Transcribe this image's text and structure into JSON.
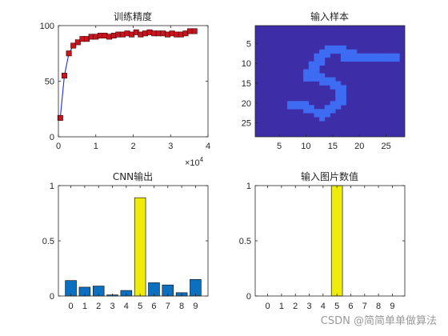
{
  "watermark": "CSDN @简简单单做算法",
  "colors": {
    "line": "#1f2fd6",
    "marker_fill": "#c8141e",
    "marker_edge": "#400000",
    "image_bg": "#3d2ea8",
    "image_fg": "#3d6cf2",
    "bar_blue": "#0b70c0",
    "bar_yellow": "#f0ec0a",
    "edge": "#1a1a1a"
  },
  "chart_data": [
    {
      "type": "line",
      "title": "训练精度",
      "xlabel": "",
      "ylabel": "",
      "xlim": [
        0,
        4
      ],
      "ylim": [
        0,
        100
      ],
      "x_multiplier_label": "×10",
      "x_multiplier_exponent": "4",
      "xticks": [
        {
          "v": 0,
          "label": "0"
        },
        {
          "v": 1,
          "label": "1"
        },
        {
          "v": 2,
          "label": "2"
        },
        {
          "v": 3,
          "label": "3"
        },
        {
          "v": 4,
          "label": "4"
        }
      ],
      "yticks": [
        {
          "v": 0,
          "label": "0"
        },
        {
          "v": 50,
          "label": "50"
        },
        {
          "v": 100,
          "label": "100"
        }
      ],
      "x": [
        0.05,
        0.16,
        0.28,
        0.4,
        0.52,
        0.64,
        0.76,
        0.88,
        1.0,
        1.12,
        1.24,
        1.36,
        1.48,
        1.6,
        1.72,
        1.84,
        1.96,
        2.08,
        2.2,
        2.32,
        2.44,
        2.56,
        2.68,
        2.8,
        2.92,
        3.04,
        3.16,
        3.28,
        3.4,
        3.52,
        3.64
      ],
      "y": [
        17,
        55,
        75,
        82,
        85,
        88,
        88,
        90,
        90,
        91,
        91,
        90,
        91,
        92,
        92,
        93,
        92,
        94,
        92,
        93,
        94,
        93,
        93,
        93,
        92,
        93,
        92,
        92,
        93,
        95,
        95
      ]
    },
    {
      "type": "heatmap",
      "title": "输入样本",
      "xlim": [
        0.5,
        28.5
      ],
      "ylim": [
        0.5,
        28.5
      ],
      "xticks": [
        {
          "v": 5,
          "label": "5"
        },
        {
          "v": 10,
          "label": "10"
        },
        {
          "v": 15,
          "label": "15"
        },
        {
          "v": 20,
          "label": "20"
        },
        {
          "v": 25,
          "label": "25"
        }
      ],
      "yticks": [
        {
          "v": 5,
          "label": "5"
        },
        {
          "v": 10,
          "label": "10"
        },
        {
          "v": 15,
          "label": "15"
        },
        {
          "v": 20,
          "label": "20"
        },
        {
          "v": 25,
          "label": "25"
        }
      ],
      "bright_pixels_row_col": [
        [
          6,
          14
        ],
        [
          6,
          15
        ],
        [
          6,
          16
        ],
        [
          6,
          17
        ],
        [
          7,
          13
        ],
        [
          7,
          14
        ],
        [
          7,
          15
        ],
        [
          7,
          16
        ],
        [
          7,
          17
        ],
        [
          7,
          18
        ],
        [
          7,
          19
        ],
        [
          8,
          12
        ],
        [
          8,
          13
        ],
        [
          8,
          14
        ],
        [
          8,
          17
        ],
        [
          8,
          18
        ],
        [
          8,
          19
        ],
        [
          8,
          20
        ],
        [
          8,
          21
        ],
        [
          8,
          22
        ],
        [
          8,
          23
        ],
        [
          8,
          24
        ],
        [
          8,
          25
        ],
        [
          8,
          26
        ],
        [
          8,
          27
        ],
        [
          9,
          12
        ],
        [
          9,
          13
        ],
        [
          9,
          17
        ],
        [
          9,
          18
        ],
        [
          9,
          19
        ],
        [
          9,
          20
        ],
        [
          9,
          21
        ],
        [
          9,
          22
        ],
        [
          9,
          23
        ],
        [
          9,
          24
        ],
        [
          9,
          25
        ],
        [
          9,
          26
        ],
        [
          9,
          27
        ],
        [
          10,
          11
        ],
        [
          10,
          12
        ],
        [
          10,
          13
        ],
        [
          11,
          11
        ],
        [
          11,
          12
        ],
        [
          12,
          10
        ],
        [
          12,
          11
        ],
        [
          12,
          12
        ],
        [
          13,
          10
        ],
        [
          13,
          11
        ],
        [
          13,
          12
        ],
        [
          13,
          13
        ],
        [
          14,
          10
        ],
        [
          14,
          11
        ],
        [
          14,
          12
        ],
        [
          14,
          13
        ],
        [
          14,
          14
        ],
        [
          14,
          15
        ],
        [
          15,
          13
        ],
        [
          15,
          14
        ],
        [
          15,
          15
        ],
        [
          15,
          16
        ],
        [
          16,
          15
        ],
        [
          16,
          16
        ],
        [
          16,
          17
        ],
        [
          17,
          16
        ],
        [
          16,
          17
        ],
        [
          17,
          17
        ],
        [
          18,
          16
        ],
        [
          18,
          17
        ],
        [
          19,
          16
        ],
        [
          19,
          17
        ],
        [
          20,
          7
        ],
        [
          20,
          8
        ],
        [
          20,
          9
        ],
        [
          20,
          10
        ],
        [
          20,
          15
        ],
        [
          20,
          16
        ],
        [
          20,
          17
        ],
        [
          21,
          7
        ],
        [
          21,
          8
        ],
        [
          21,
          9
        ],
        [
          21,
          10
        ],
        [
          21,
          11
        ],
        [
          21,
          14
        ],
        [
          21,
          15
        ],
        [
          21,
          16
        ],
        [
          22,
          10
        ],
        [
          22,
          11
        ],
        [
          22,
          12
        ],
        [
          22,
          13
        ],
        [
          22,
          14
        ],
        [
          22,
          15
        ],
        [
          23,
          12
        ],
        [
          23,
          13
        ],
        [
          23,
          14
        ],
        [
          24,
          13
        ]
      ]
    },
    {
      "type": "bar",
      "title": "CNN输出",
      "categories": [
        "0",
        "1",
        "2",
        "3",
        "4",
        "5",
        "6",
        "7",
        "8",
        "9"
      ],
      "values": [
        0.14,
        0.08,
        0.09,
        0.01,
        0.05,
        0.89,
        0.12,
        0.1,
        0.03,
        0.15
      ],
      "highlight_index": 5,
      "ylim": [
        0,
        1
      ],
      "yticks": [
        {
          "v": 0,
          "label": "0"
        },
        {
          "v": 0.5,
          "label": "0.5"
        },
        {
          "v": 1,
          "label": "1"
        }
      ]
    },
    {
      "type": "bar",
      "title": "输入图片数值",
      "categories": [
        "0",
        "1",
        "2",
        "3",
        "4",
        "5",
        "6",
        "7",
        "8",
        "9"
      ],
      "values": [
        0,
        0,
        0,
        0,
        0,
        1,
        0,
        0,
        0,
        0
      ],
      "highlight_index": 5,
      "ylim": [
        0,
        1
      ],
      "yticks": [
        {
          "v": 0,
          "label": "0"
        },
        {
          "v": 0.5,
          "label": "0.5"
        },
        {
          "v": 1,
          "label": "1"
        }
      ]
    }
  ]
}
